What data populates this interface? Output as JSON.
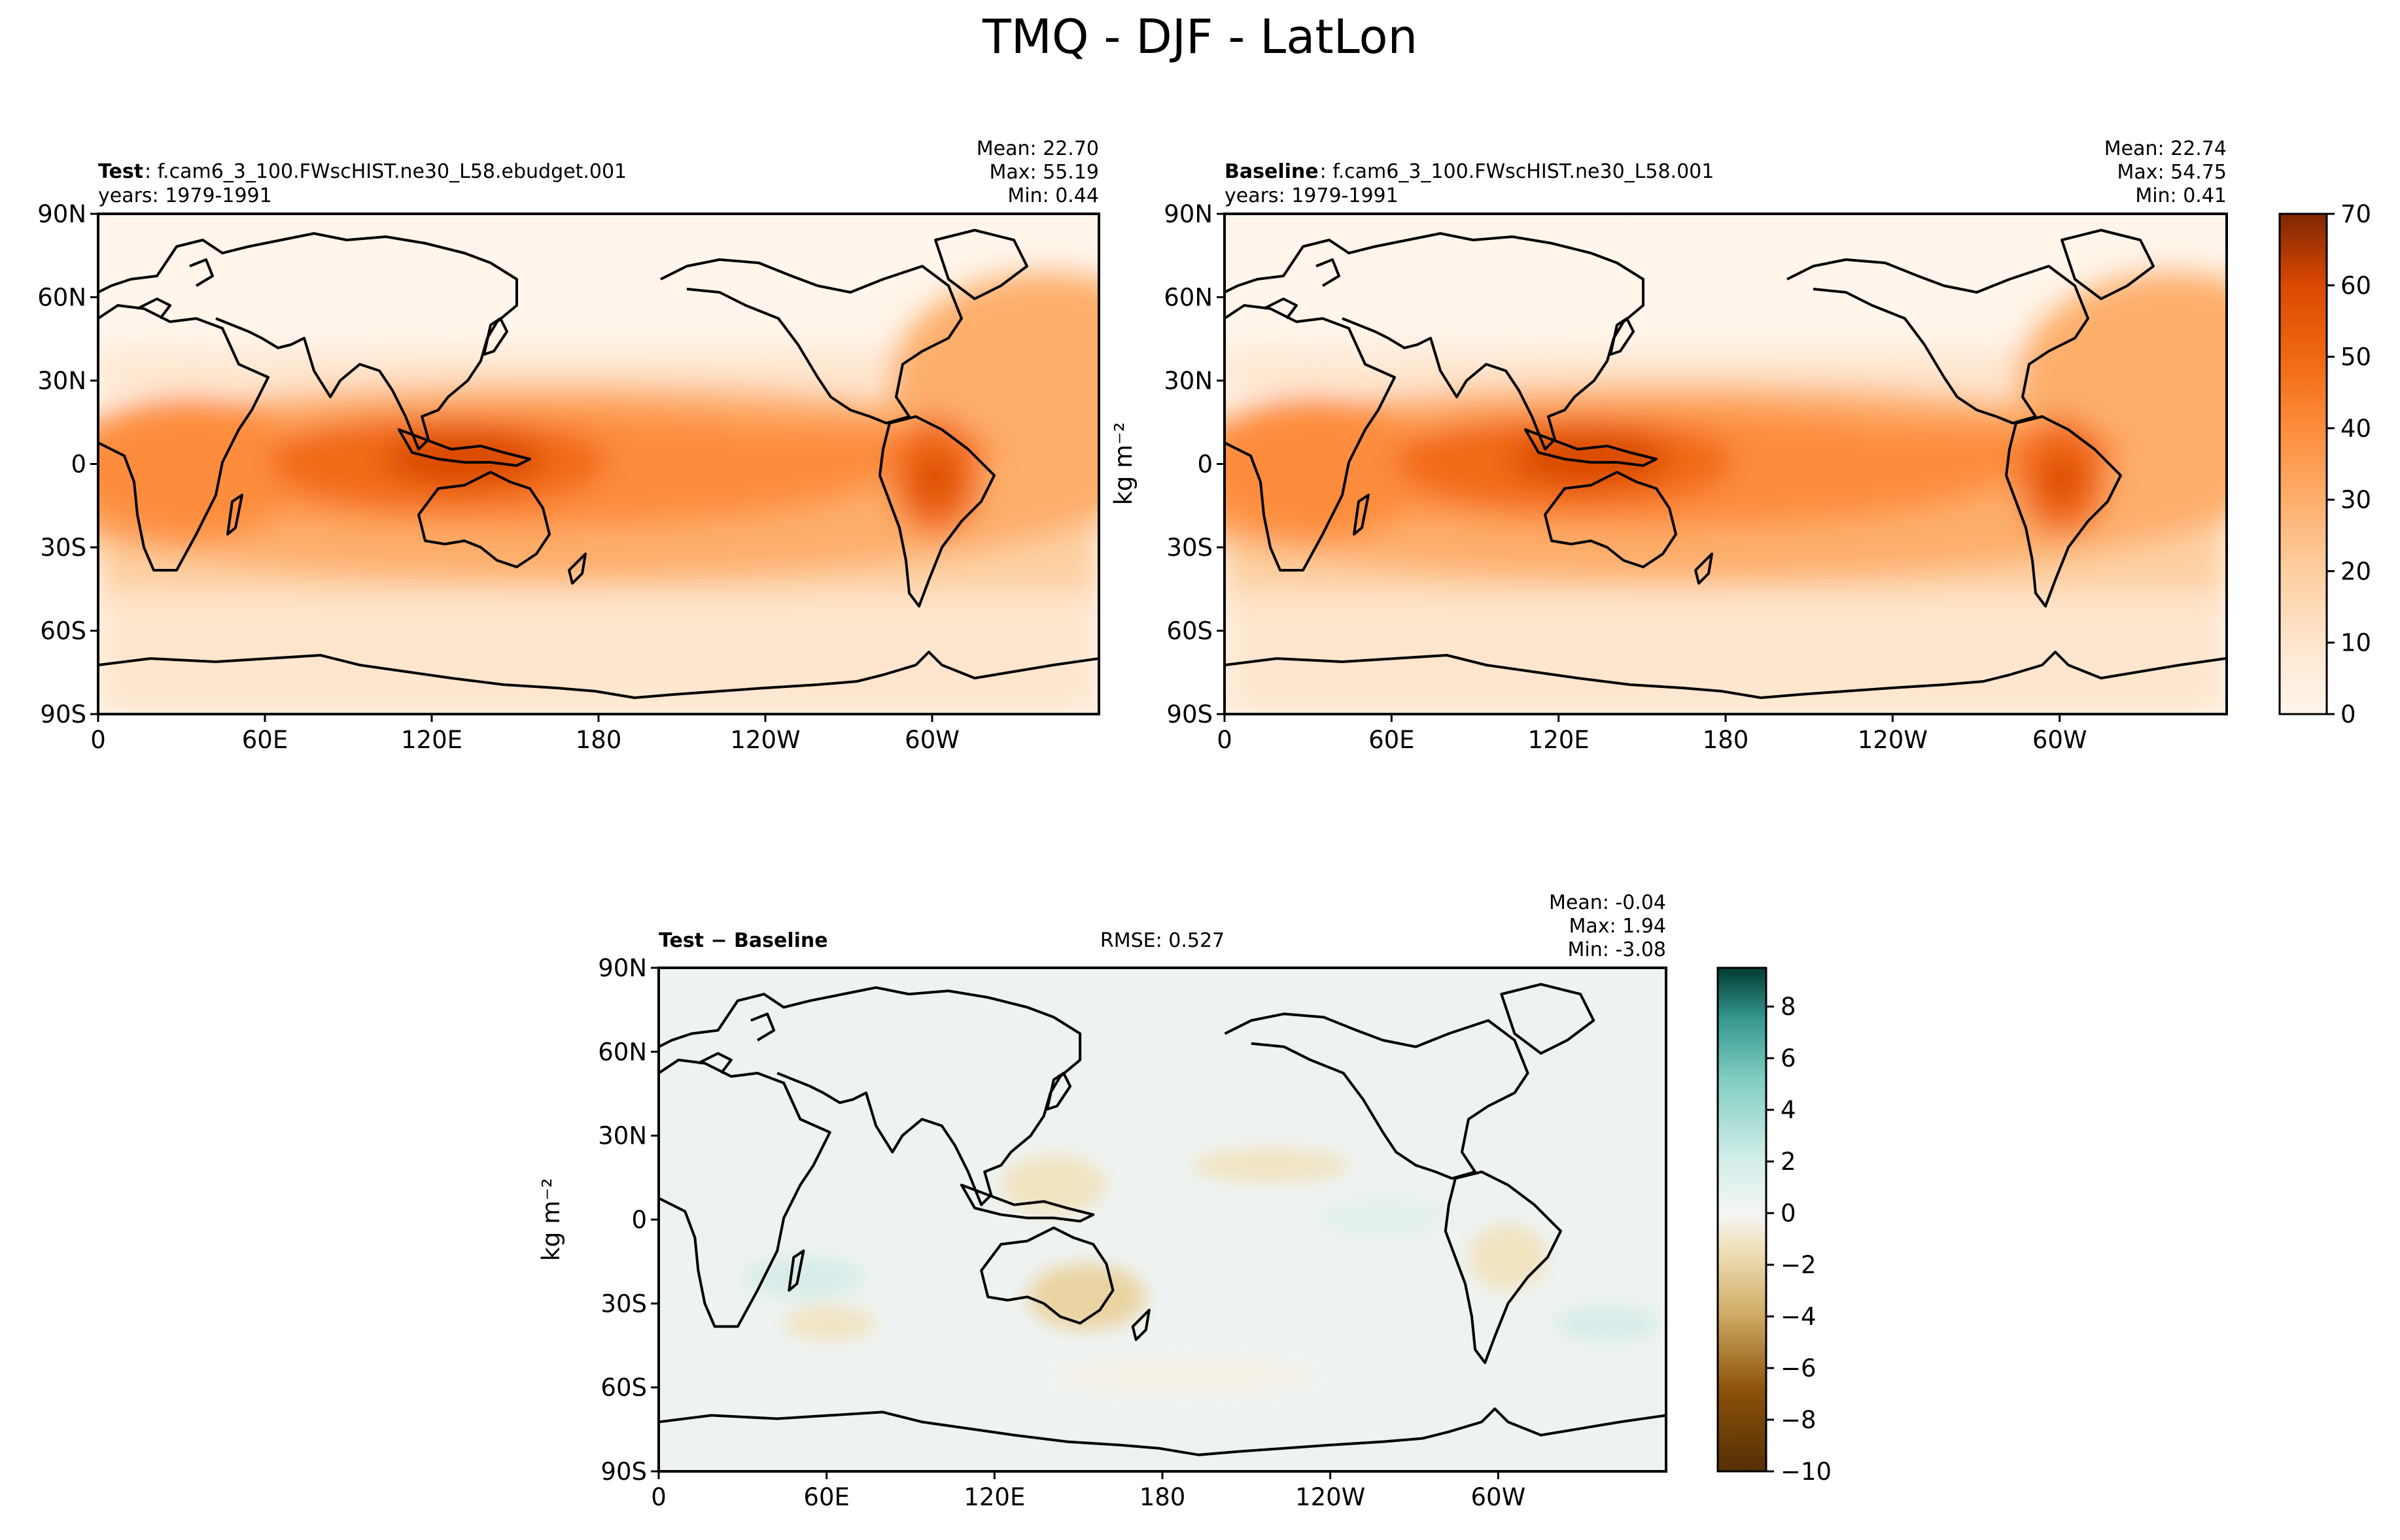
{
  "figure": {
    "title": "TMQ - DJF - LatLon"
  },
  "panels": [
    {
      "id": "test",
      "label_bold": "Test",
      "label_text": ": f.cam6_3_100.FWscHIST.ne30_L58.ebudget.001",
      "years": "years: 1979-1991",
      "stats": [
        "Mean: 22.70",
        "Max: 55.19",
        "Min:  0.44"
      ]
    },
    {
      "id": "baseline",
      "label_bold": "Baseline",
      "label_text": ": f.cam6_3_100.FWscHIST.ne30_L58.001",
      "years": "years: 1979-1991",
      "stats": [
        "Mean: 22.74",
        "Max: 54.75",
        "Min:  0.41"
      ]
    },
    {
      "id": "diff",
      "label_bold": "Test − Baseline",
      "rmse": "RMSE: 0.527",
      "stats": [
        "Mean: -0.04",
        "Max:  1.94",
        "Min: -3.08"
      ]
    }
  ],
  "axes": {
    "lat_ticks": [
      "90N",
      "60N",
      "30N",
      "0",
      "30S",
      "60S",
      "90S"
    ],
    "lon_ticks": [
      "0",
      "60E",
      "120E",
      "180",
      "120W",
      "60W"
    ]
  },
  "colorbars": [
    {
      "id": "main",
      "label": "kg m⁻²",
      "ticks": [
        "0",
        "10",
        "20",
        "30",
        "40",
        "50",
        "60",
        "70"
      ],
      "range": [
        0,
        70
      ],
      "colormap": "Oranges"
    },
    {
      "id": "diff",
      "label": "kg m⁻²",
      "ticks": [
        "−10",
        "−8",
        "−6",
        "−4",
        "−2",
        "0",
        "2",
        "4",
        "6",
        "8"
      ],
      "range": [
        -10,
        9.5
      ],
      "colormap": "BrBG"
    }
  ],
  "chart_data": [
    {
      "type": "heatmap",
      "title": "Test: f.cam6_3_100.FWscHIST.ne30_L58.ebudget.001",
      "xlabel": "",
      "ylabel": "",
      "x_range": [
        0,
        360
      ],
      "y_range": [
        -90,
        90
      ],
      "value_range": [
        0,
        70
      ],
      "mean": 22.7,
      "max": 55.19,
      "min": 0.44
    },
    {
      "type": "heatmap",
      "title": "Baseline: f.cam6_3_100.FWscHIST.ne30_L58.001",
      "xlabel": "",
      "ylabel": "kg m⁻²",
      "x_range": [
        0,
        360
      ],
      "y_range": [
        -90,
        90
      ],
      "value_range": [
        0,
        70
      ],
      "mean": 22.74,
      "max": 54.75,
      "min": 0.41
    },
    {
      "type": "heatmap",
      "title": "Test − Baseline",
      "xlabel": "",
      "ylabel": "kg m⁻²",
      "x_range": [
        0,
        360
      ],
      "y_range": [
        -90,
        90
      ],
      "value_range": [
        -10,
        9.5
      ],
      "mean": -0.04,
      "max": 1.94,
      "min": -3.08,
      "rmse": 0.527
    }
  ]
}
